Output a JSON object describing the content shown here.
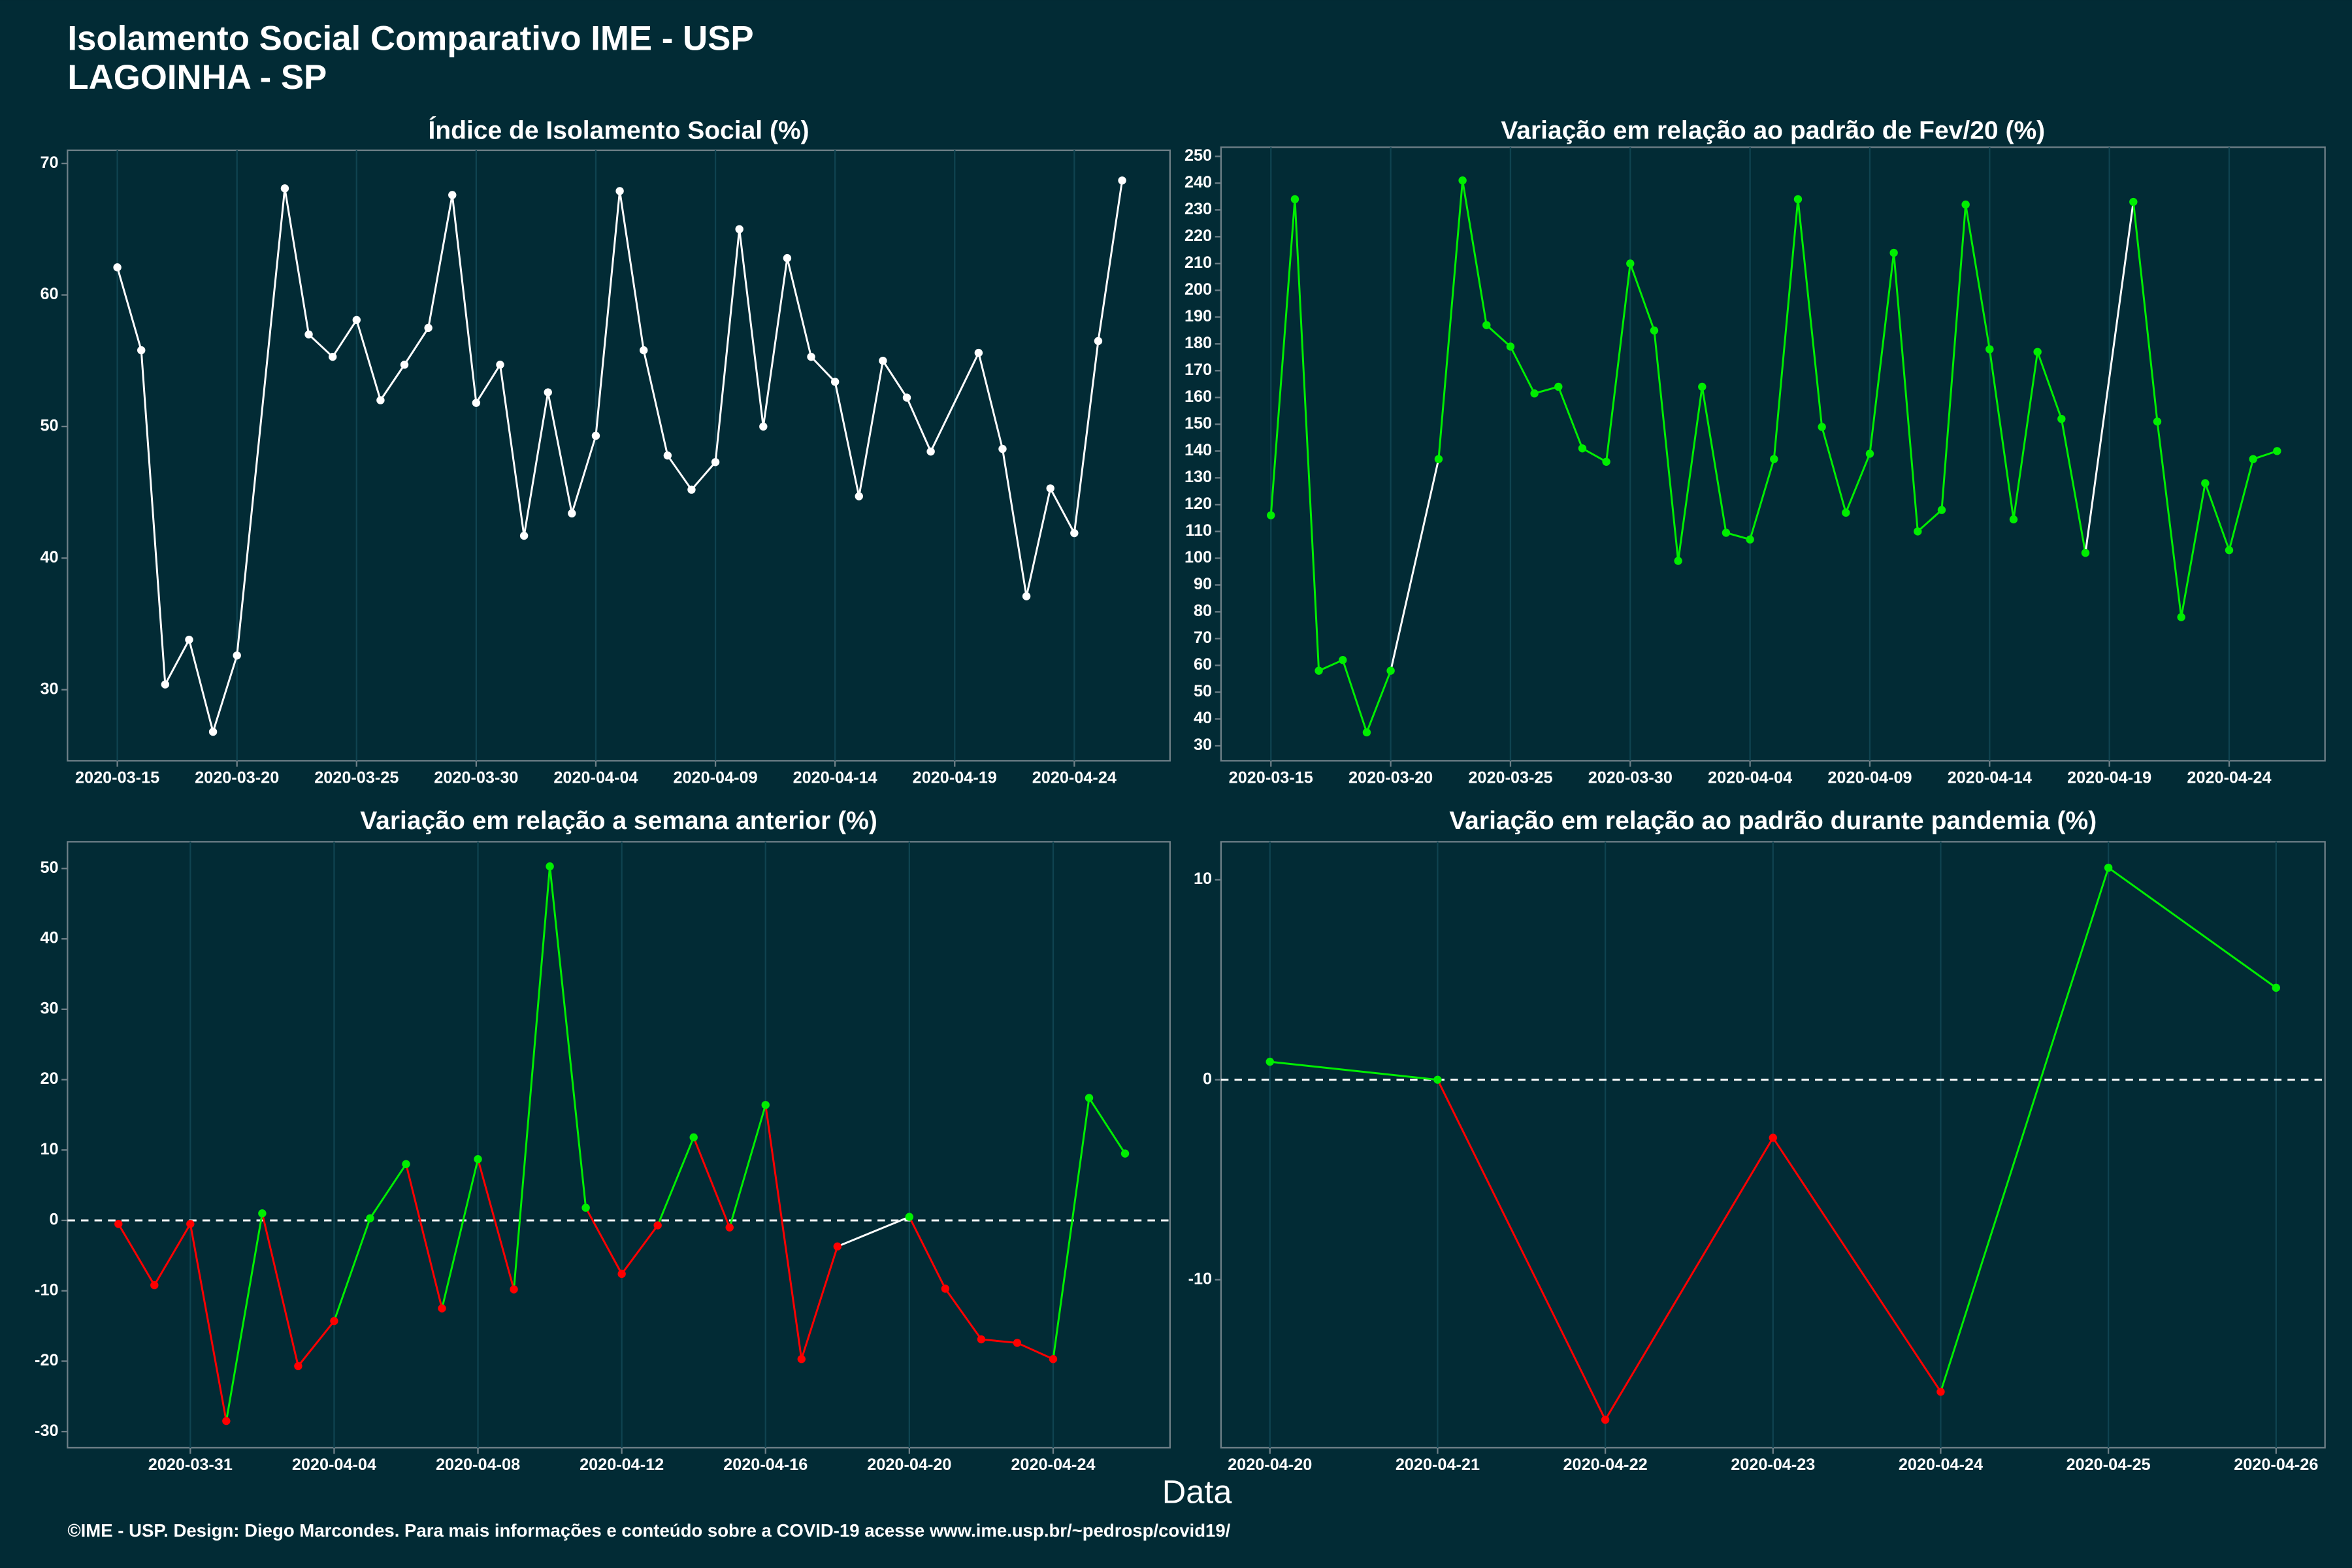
{
  "header": {
    "title": "Isolamento Social Comparativo IME - USP",
    "subtitle": "LAGOINHA - SP"
  },
  "x_label": "Data",
  "footer": "©IME - USP. Design: Diego Marcondes. Para mais informações e conteúdo sobre a COVID-19 acesse www.ime.usp.br/~pedrosp/covid19/",
  "chart_data": [
    {
      "type": "line",
      "title": "Índice de Isolamento Social (%)",
      "x": [
        "2020-03-15",
        "2020-03-16",
        "2020-03-17",
        "2020-03-18",
        "2020-03-19",
        "2020-03-20",
        "2020-03-22",
        "2020-03-23",
        "2020-03-24",
        "2020-03-25",
        "2020-03-26",
        "2020-03-27",
        "2020-03-28",
        "2020-03-29",
        "2020-03-30",
        "2020-03-31",
        "2020-04-01",
        "2020-04-02",
        "2020-04-03",
        "2020-04-04",
        "2020-04-05",
        "2020-04-06",
        "2020-04-07",
        "2020-04-08",
        "2020-04-09",
        "2020-04-10",
        "2020-04-11",
        "2020-04-12",
        "2020-04-13",
        "2020-04-14",
        "2020-04-15",
        "2020-04-16",
        "2020-04-17",
        "2020-04-18",
        "2020-04-20",
        "2020-04-21",
        "2020-04-22",
        "2020-04-23",
        "2020-04-24",
        "2020-04-25",
        "2020-04-26"
      ],
      "values": [
        62.1,
        55.8,
        30.4,
        33.8,
        26.8,
        32.6,
        68.1,
        57.0,
        55.3,
        58.1,
        52.0,
        54.7,
        57.5,
        67.6,
        51.8,
        54.7,
        41.7,
        52.6,
        43.4,
        49.3,
        67.9,
        55.8,
        47.8,
        45.2,
        47.3,
        65.0,
        50.0,
        62.8,
        55.3,
        53.4,
        44.7,
        55.0,
        52.2,
        48.1,
        55.6,
        48.3,
        37.1,
        45.3,
        41.9,
        56.5,
        68.7
      ],
      "xlim": [
        "2020-03-12T22:00Z",
        "2020-04-28T00:00Z"
      ],
      "ylim": [
        24.6,
        71.0
      ],
      "xticks": [
        "2020-03-15",
        "2020-03-20",
        "2020-03-25",
        "2020-03-30",
        "2020-04-04",
        "2020-04-09",
        "2020-04-14",
        "2020-04-19",
        "2020-04-24"
      ],
      "yticks": [
        30,
        40,
        50,
        60,
        70
      ],
      "pos_color": "#ffffff",
      "neg_color": "#ffffff",
      "gap_color": "#ffffff",
      "grid": true
    },
    {
      "type": "line",
      "title": "Variação em relação ao padrão de Fev/20 (%)",
      "x": [
        "2020-03-15",
        "2020-03-16",
        "2020-03-17",
        "2020-03-18",
        "2020-03-19",
        "2020-03-20",
        "2020-03-22",
        "2020-03-23",
        "2020-03-24",
        "2020-03-25",
        "2020-03-26",
        "2020-03-27",
        "2020-03-28",
        "2020-03-29",
        "2020-03-30",
        "2020-03-31",
        "2020-04-01",
        "2020-04-02",
        "2020-04-03",
        "2020-04-04",
        "2020-04-05",
        "2020-04-06",
        "2020-04-07",
        "2020-04-08",
        "2020-04-09",
        "2020-04-10",
        "2020-04-11",
        "2020-04-12",
        "2020-04-13",
        "2020-04-14",
        "2020-04-15",
        "2020-04-16",
        "2020-04-17",
        "2020-04-18",
        "2020-04-20",
        "2020-04-21",
        "2020-04-22",
        "2020-04-23",
        "2020-04-24",
        "2020-04-25",
        "2020-04-26"
      ],
      "values": [
        116,
        234,
        58,
        62,
        35,
        58,
        137,
        241,
        187,
        179,
        161.5,
        164,
        141,
        136,
        210,
        185,
        99,
        164,
        109.5,
        107,
        137,
        234,
        149,
        117,
        139,
        214,
        110,
        118,
        232,
        178,
        114.5,
        177,
        152,
        102,
        233,
        151,
        78,
        128,
        103,
        137,
        140
      ],
      "xlim": [
        "2020-03-12T22:00Z",
        "2020-04-28T00:00Z"
      ],
      "ylim": [
        24.4,
        253.4
      ],
      "xticks": [
        "2020-03-15",
        "2020-03-20",
        "2020-03-25",
        "2020-03-30",
        "2020-04-04",
        "2020-04-09",
        "2020-04-14",
        "2020-04-19",
        "2020-04-24"
      ],
      "yticks": [
        30,
        40,
        50,
        60,
        70,
        80,
        90,
        100,
        110,
        120,
        130,
        140,
        150,
        160,
        170,
        180,
        190,
        200,
        210,
        220,
        230,
        240,
        250
      ],
      "pos_color": "#00ee00",
      "neg_color": "#ff0000",
      "gap_color": "#ffffff",
      "grid": true
    },
    {
      "type": "line",
      "title": "Variação em relação a semana anterior (%)",
      "x": [
        "2020-03-29",
        "2020-03-30",
        "2020-03-31",
        "2020-04-01",
        "2020-04-02",
        "2020-04-03",
        "2020-04-04",
        "2020-04-05",
        "2020-04-06",
        "2020-04-07",
        "2020-04-08",
        "2020-04-09",
        "2020-04-10",
        "2020-04-11",
        "2020-04-12",
        "2020-04-13",
        "2020-04-14",
        "2020-04-15",
        "2020-04-16",
        "2020-04-17",
        "2020-04-18",
        "2020-04-20",
        "2020-04-21",
        "2020-04-22",
        "2020-04-23",
        "2020-04-24",
        "2020-04-25",
        "2020-04-26"
      ],
      "values": [
        -0.5,
        -9.2,
        -0.5,
        -28.5,
        1.0,
        -20.7,
        -14.3,
        0.3,
        8.0,
        -12.5,
        8.7,
        -9.8,
        50.3,
        1.8,
        -7.6,
        -0.7,
        11.8,
        -1.0,
        16.4,
        -19.7,
        -3.7,
        0.5,
        -9.7,
        -16.9,
        -17.4,
        -19.7,
        17.4,
        9.5
      ],
      "xlim": [
        "2020-03-27T14:00Z",
        "2020-04-27T06:00Z"
      ],
      "ylim": [
        -32.3,
        53.8
      ],
      "xticks": [
        "2020-03-31",
        "2020-04-04",
        "2020-04-08",
        "2020-04-12",
        "2020-04-16",
        "2020-04-20",
        "2020-04-24"
      ],
      "yticks": [
        -30,
        -20,
        -10,
        0,
        10,
        20,
        30,
        40,
        50
      ],
      "hline": 0,
      "pos_color": "#00ee00",
      "neg_color": "#ff0000",
      "gap_color": "#ffffff",
      "grid": true
    },
    {
      "type": "line",
      "title": "Variação em relação ao padrão durante pandemia (%)",
      "x": [
        "2020-04-20",
        "2020-04-21",
        "2020-04-22",
        "2020-04-23",
        "2020-04-24",
        "2020-04-25",
        "2020-04-26"
      ],
      "values": [
        0.9,
        0,
        -17.0,
        -2.9,
        -15.6,
        10.6,
        4.6
      ],
      "xlim": [
        "2020-04-19T17:00Z",
        "2020-04-26T07:00Z"
      ],
      "ylim": [
        -18.4,
        11.9
      ],
      "xticks": [
        "2020-04-20",
        "2020-04-21",
        "2020-04-22",
        "2020-04-23",
        "2020-04-24",
        "2020-04-25",
        "2020-04-26"
      ],
      "yticks": [
        -10,
        0,
        10
      ],
      "hline": 0,
      "pos_color": "#00ee00",
      "neg_color": "#ff0000",
      "gap_color": "#ffffff",
      "grid": true
    }
  ]
}
